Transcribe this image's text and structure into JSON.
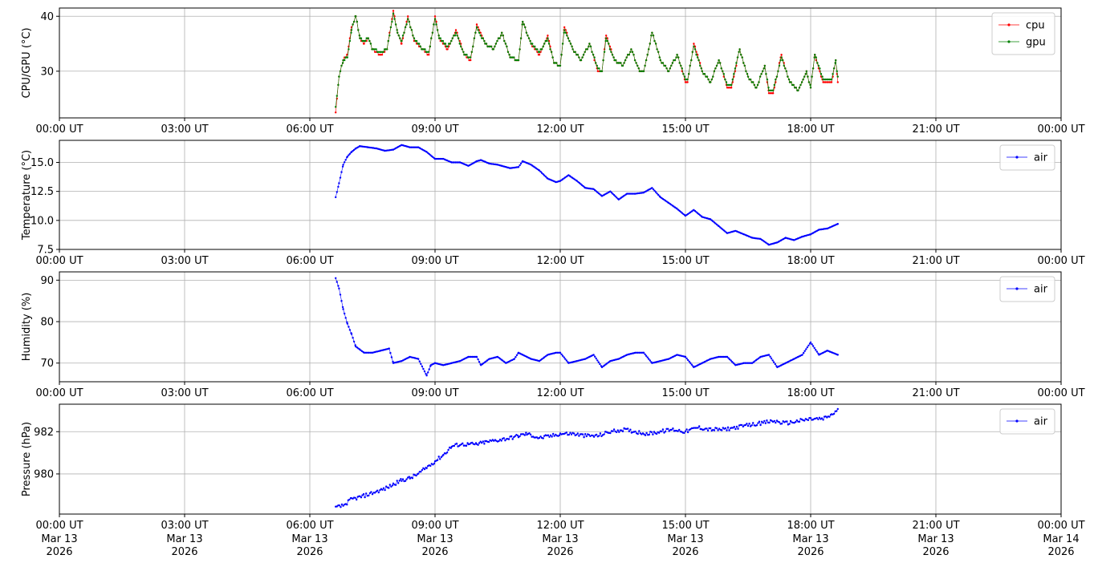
{
  "figure": {
    "x_ticks": [
      "00:00 UT",
      "03:00 UT",
      "06:00 UT",
      "09:00 UT",
      "12:00 UT",
      "15:00 UT",
      "18:00 UT",
      "21:00 UT",
      "00:00 UT"
    ],
    "x_date_ticks": [
      "Mar 13\n2026",
      "Mar 13\n2026",
      "Mar 13\n2026",
      "Mar 13\n2026",
      "Mar 13\n2026",
      "Mar 13\n2026",
      "Mar 13\n2026",
      "Mar 13\n2026",
      "Mar 14\n2026"
    ],
    "x_hours": [
      0,
      3,
      6,
      9,
      12,
      15,
      18,
      21,
      24
    ]
  },
  "chart_data": [
    {
      "type": "line",
      "ylabel": "CPU/GPU (°C)",
      "x_units": "hours UT, 2026-03-13",
      "xlim": [
        0,
        24
      ],
      "ylim": [
        21.5,
        41.5
      ],
      "yticks": [
        30,
        40
      ],
      "grid": true,
      "legend_position": "top-right",
      "series": [
        {
          "name": "cpu",
          "color": "#ff0000",
          "x": [
            6.62,
            6.7,
            6.8,
            6.9,
            7.0,
            7.1,
            7.2,
            7.3,
            7.4,
            7.5,
            7.7,
            7.85,
            8.0,
            8.1,
            8.2,
            8.35,
            8.5,
            8.7,
            8.85,
            9.0,
            9.1,
            9.3,
            9.5,
            9.7,
            9.85,
            10.0,
            10.2,
            10.4,
            10.6,
            10.8,
            11.0,
            11.1,
            11.3,
            11.5,
            11.7,
            11.85,
            12.0,
            12.1,
            12.3,
            12.5,
            12.7,
            12.9,
            13.0,
            13.1,
            13.3,
            13.5,
            13.7,
            13.9,
            14.0,
            14.2,
            14.4,
            14.6,
            14.8,
            15.0,
            15.05,
            15.2,
            15.4,
            15.6,
            15.8,
            16.0,
            16.1,
            16.3,
            16.5,
            16.7,
            16.9,
            17.0,
            17.1,
            17.3,
            17.5,
            17.7,
            17.9,
            18.0,
            18.1,
            18.3,
            18.5,
            18.6,
            18.65
          ],
          "y": [
            22.5,
            29.0,
            32.0,
            33.0,
            38.0,
            40.0,
            36.0,
            35.0,
            36.0,
            34.0,
            33.0,
            34.0,
            41.0,
            37.0,
            35.0,
            40.0,
            35.5,
            34.0,
            33.0,
            40.0,
            36.0,
            34.0,
            37.5,
            33.0,
            32.0,
            38.5,
            35.0,
            34.0,
            37.0,
            32.5,
            32.0,
            39.0,
            35.0,
            33.0,
            36.5,
            31.5,
            31.0,
            38.0,
            34.0,
            32.0,
            35.0,
            30.0,
            30.0,
            36.5,
            32.0,
            31.0,
            34.0,
            30.0,
            30.0,
            37.0,
            32.0,
            30.0,
            33.0,
            28.0,
            28.0,
            35.0,
            30.0,
            28.0,
            32.0,
            27.0,
            27.0,
            34.0,
            29.0,
            27.0,
            31.0,
            26.0,
            26.0,
            33.0,
            28.0,
            26.5,
            30.0,
            27.0,
            33.0,
            28.0,
            28.0,
            32.0,
            28.0
          ]
        },
        {
          "name": "gpu",
          "color": "#008000",
          "x": [
            6.62,
            6.7,
            6.8,
            6.9,
            7.0,
            7.1,
            7.2,
            7.3,
            7.4,
            7.5,
            7.7,
            7.85,
            8.0,
            8.1,
            8.2,
            8.35,
            8.5,
            8.7,
            8.85,
            9.0,
            9.1,
            9.3,
            9.5,
            9.7,
            9.85,
            10.0,
            10.2,
            10.4,
            10.6,
            10.8,
            11.0,
            11.1,
            11.3,
            11.5,
            11.7,
            11.85,
            12.0,
            12.1,
            12.3,
            12.5,
            12.7,
            12.9,
            13.0,
            13.1,
            13.3,
            13.5,
            13.7,
            13.9,
            14.0,
            14.2,
            14.4,
            14.6,
            14.8,
            15.0,
            15.05,
            15.2,
            15.4,
            15.6,
            15.8,
            16.0,
            16.1,
            16.3,
            16.5,
            16.7,
            16.9,
            17.0,
            17.1,
            17.3,
            17.5,
            17.7,
            17.9,
            18.0,
            18.1,
            18.3,
            18.5,
            18.6,
            18.65
          ],
          "y": [
            23.5,
            29.0,
            32.0,
            32.5,
            37.5,
            40.0,
            36.0,
            35.5,
            36.0,
            34.0,
            33.5,
            34.0,
            40.5,
            37.0,
            35.5,
            39.5,
            36.0,
            34.0,
            33.5,
            39.5,
            36.0,
            34.5,
            37.0,
            33.0,
            32.5,
            38.0,
            35.0,
            34.0,
            37.0,
            32.5,
            32.0,
            39.0,
            35.0,
            33.5,
            36.0,
            31.5,
            31.0,
            37.5,
            34.0,
            32.0,
            35.0,
            30.5,
            30.0,
            36.0,
            32.0,
            31.0,
            34.0,
            30.0,
            30.0,
            37.0,
            32.0,
            30.0,
            33.0,
            28.5,
            28.5,
            34.5,
            30.0,
            28.0,
            32.0,
            27.5,
            27.5,
            34.0,
            29.0,
            27.0,
            31.0,
            26.5,
            26.5,
            32.5,
            28.0,
            26.5,
            30.0,
            27.0,
            33.0,
            28.5,
            28.5,
            32.0,
            29.0
          ]
        }
      ]
    },
    {
      "type": "line",
      "ylabel": "Temperature (°C)",
      "x_units": "hours UT, 2026-03-13",
      "xlim": [
        0,
        24
      ],
      "ylim": [
        7.5,
        16.9
      ],
      "yticks": [
        7.5,
        10.0,
        12.5,
        15.0
      ],
      "grid": true,
      "legend_position": "top-right",
      "series": [
        {
          "name": "air",
          "color": "#0000ff",
          "x": [
            6.62,
            6.7,
            6.8,
            6.9,
            7.0,
            7.1,
            7.2,
            7.4,
            7.6,
            7.8,
            8.0,
            8.2,
            8.4,
            8.6,
            8.8,
            9.0,
            9.2,
            9.4,
            9.6,
            9.8,
            10.0,
            10.1,
            10.3,
            10.5,
            10.6,
            10.8,
            11.0,
            11.1,
            11.3,
            11.5,
            11.7,
            11.9,
            12.0,
            12.2,
            12.4,
            12.6,
            12.8,
            13.0,
            13.2,
            13.4,
            13.6,
            13.8,
            14.0,
            14.2,
            14.4,
            14.6,
            14.8,
            15.0,
            15.2,
            15.4,
            15.6,
            15.8,
            16.0,
            16.2,
            16.4,
            16.6,
            16.8,
            17.0,
            17.2,
            17.4,
            17.6,
            17.8,
            18.0,
            18.2,
            18.4,
            18.65
          ],
          "y": [
            12.0,
            13.2,
            14.8,
            15.5,
            15.9,
            16.2,
            16.4,
            16.3,
            16.2,
            16.0,
            16.1,
            16.5,
            16.3,
            16.3,
            15.9,
            15.3,
            15.3,
            15.0,
            15.0,
            14.7,
            15.1,
            15.2,
            14.9,
            14.8,
            14.7,
            14.5,
            14.6,
            15.1,
            14.8,
            14.3,
            13.6,
            13.3,
            13.4,
            13.9,
            13.4,
            12.8,
            12.7,
            12.1,
            12.5,
            11.8,
            12.3,
            12.3,
            12.4,
            12.8,
            12.0,
            11.5,
            11.0,
            10.4,
            10.9,
            10.3,
            10.1,
            9.5,
            8.9,
            9.1,
            8.8,
            8.5,
            8.4,
            7.9,
            8.1,
            8.5,
            8.3,
            8.6,
            8.8,
            9.2,
            9.3,
            9.7
          ]
        }
      ]
    },
    {
      "type": "line",
      "ylabel": "Humidity (%)",
      "x_units": "hours UT, 2026-03-13",
      "xlim": [
        0,
        24
      ],
      "ylim": [
        65.5,
        92.0
      ],
      "yticks": [
        70,
        80,
        90
      ],
      "grid": true,
      "legend_position": "top-right",
      "series": [
        {
          "name": "air",
          "color": "#0000ff",
          "x": [
            6.62,
            6.7,
            6.8,
            6.9,
            7.0,
            7.1,
            7.3,
            7.5,
            7.7,
            7.9,
            8.0,
            8.2,
            8.4,
            8.6,
            8.8,
            8.9,
            9.0,
            9.2,
            9.4,
            9.6,
            9.8,
            10.0,
            10.1,
            10.3,
            10.5,
            10.7,
            10.9,
            11.0,
            11.1,
            11.3,
            11.5,
            11.7,
            11.9,
            12.0,
            12.2,
            12.4,
            12.6,
            12.8,
            13.0,
            13.2,
            13.4,
            13.6,
            13.8,
            14.0,
            14.2,
            14.4,
            14.6,
            14.8,
            15.0,
            15.2,
            15.4,
            15.6,
            15.8,
            16.0,
            16.2,
            16.4,
            16.6,
            16.8,
            17.0,
            17.2,
            17.4,
            17.6,
            17.8,
            18.0,
            18.2,
            18.4,
            18.65
          ],
          "y": [
            90.5,
            88.0,
            83.0,
            79.5,
            77.0,
            74.0,
            72.5,
            72.5,
            73.0,
            73.5,
            70.0,
            70.5,
            71.5,
            71.0,
            67.0,
            69.5,
            70.0,
            69.5,
            70.0,
            70.5,
            71.5,
            71.5,
            69.5,
            71.0,
            71.5,
            70.0,
            71.0,
            72.5,
            72.0,
            71.0,
            70.5,
            72.0,
            72.5,
            72.5,
            70.0,
            70.5,
            71.0,
            72.0,
            69.0,
            70.5,
            71.0,
            72.0,
            72.5,
            72.5,
            70.0,
            70.5,
            71.0,
            72.0,
            71.5,
            69.0,
            70.0,
            71.0,
            71.5,
            71.5,
            69.5,
            70.0,
            70.0,
            71.5,
            72.0,
            69.0,
            70.0,
            71.0,
            72.0,
            75.0,
            72.0,
            73.0,
            72.0
          ]
        }
      ]
    },
    {
      "type": "scatter",
      "ylabel": "Pressure (hPa)",
      "x_units": "hours UT, 2026-03-13",
      "xlim": [
        0,
        24
      ],
      "ylim": [
        978.1,
        983.3
      ],
      "yticks": [
        980,
        982
      ],
      "grid": true,
      "legend_position": "top-right",
      "series": [
        {
          "name": "air",
          "color": "#0000ff",
          "x": [
            6.62,
            6.8,
            7.0,
            7.2,
            7.5,
            7.8,
            8.0,
            8.2,
            8.4,
            8.6,
            8.8,
            9.0,
            9.2,
            9.4,
            9.6,
            9.8,
            10.0,
            10.2,
            10.5,
            10.8,
            11.0,
            11.2,
            11.5,
            11.8,
            12.0,
            12.3,
            12.6,
            12.9,
            13.2,
            13.5,
            13.8,
            14.1,
            14.4,
            14.7,
            15.0,
            15.3,
            15.6,
            15.9,
            16.2,
            16.5,
            16.8,
            17.1,
            17.4,
            17.7,
            18.0,
            18.3,
            18.5,
            18.65
          ],
          "y": [
            978.4,
            978.5,
            978.8,
            978.9,
            979.1,
            979.3,
            979.5,
            979.7,
            979.8,
            980.0,
            980.3,
            980.6,
            980.9,
            981.3,
            981.4,
            981.4,
            981.4,
            981.5,
            981.6,
            981.7,
            981.8,
            981.9,
            981.7,
            981.8,
            981.9,
            981.9,
            981.8,
            981.8,
            982.0,
            982.1,
            982.0,
            981.9,
            982.0,
            982.1,
            982.0,
            982.2,
            982.1,
            982.1,
            982.2,
            982.3,
            982.4,
            982.5,
            982.4,
            982.5,
            982.6,
            982.6,
            982.8,
            983.0
          ]
        }
      ]
    }
  ]
}
